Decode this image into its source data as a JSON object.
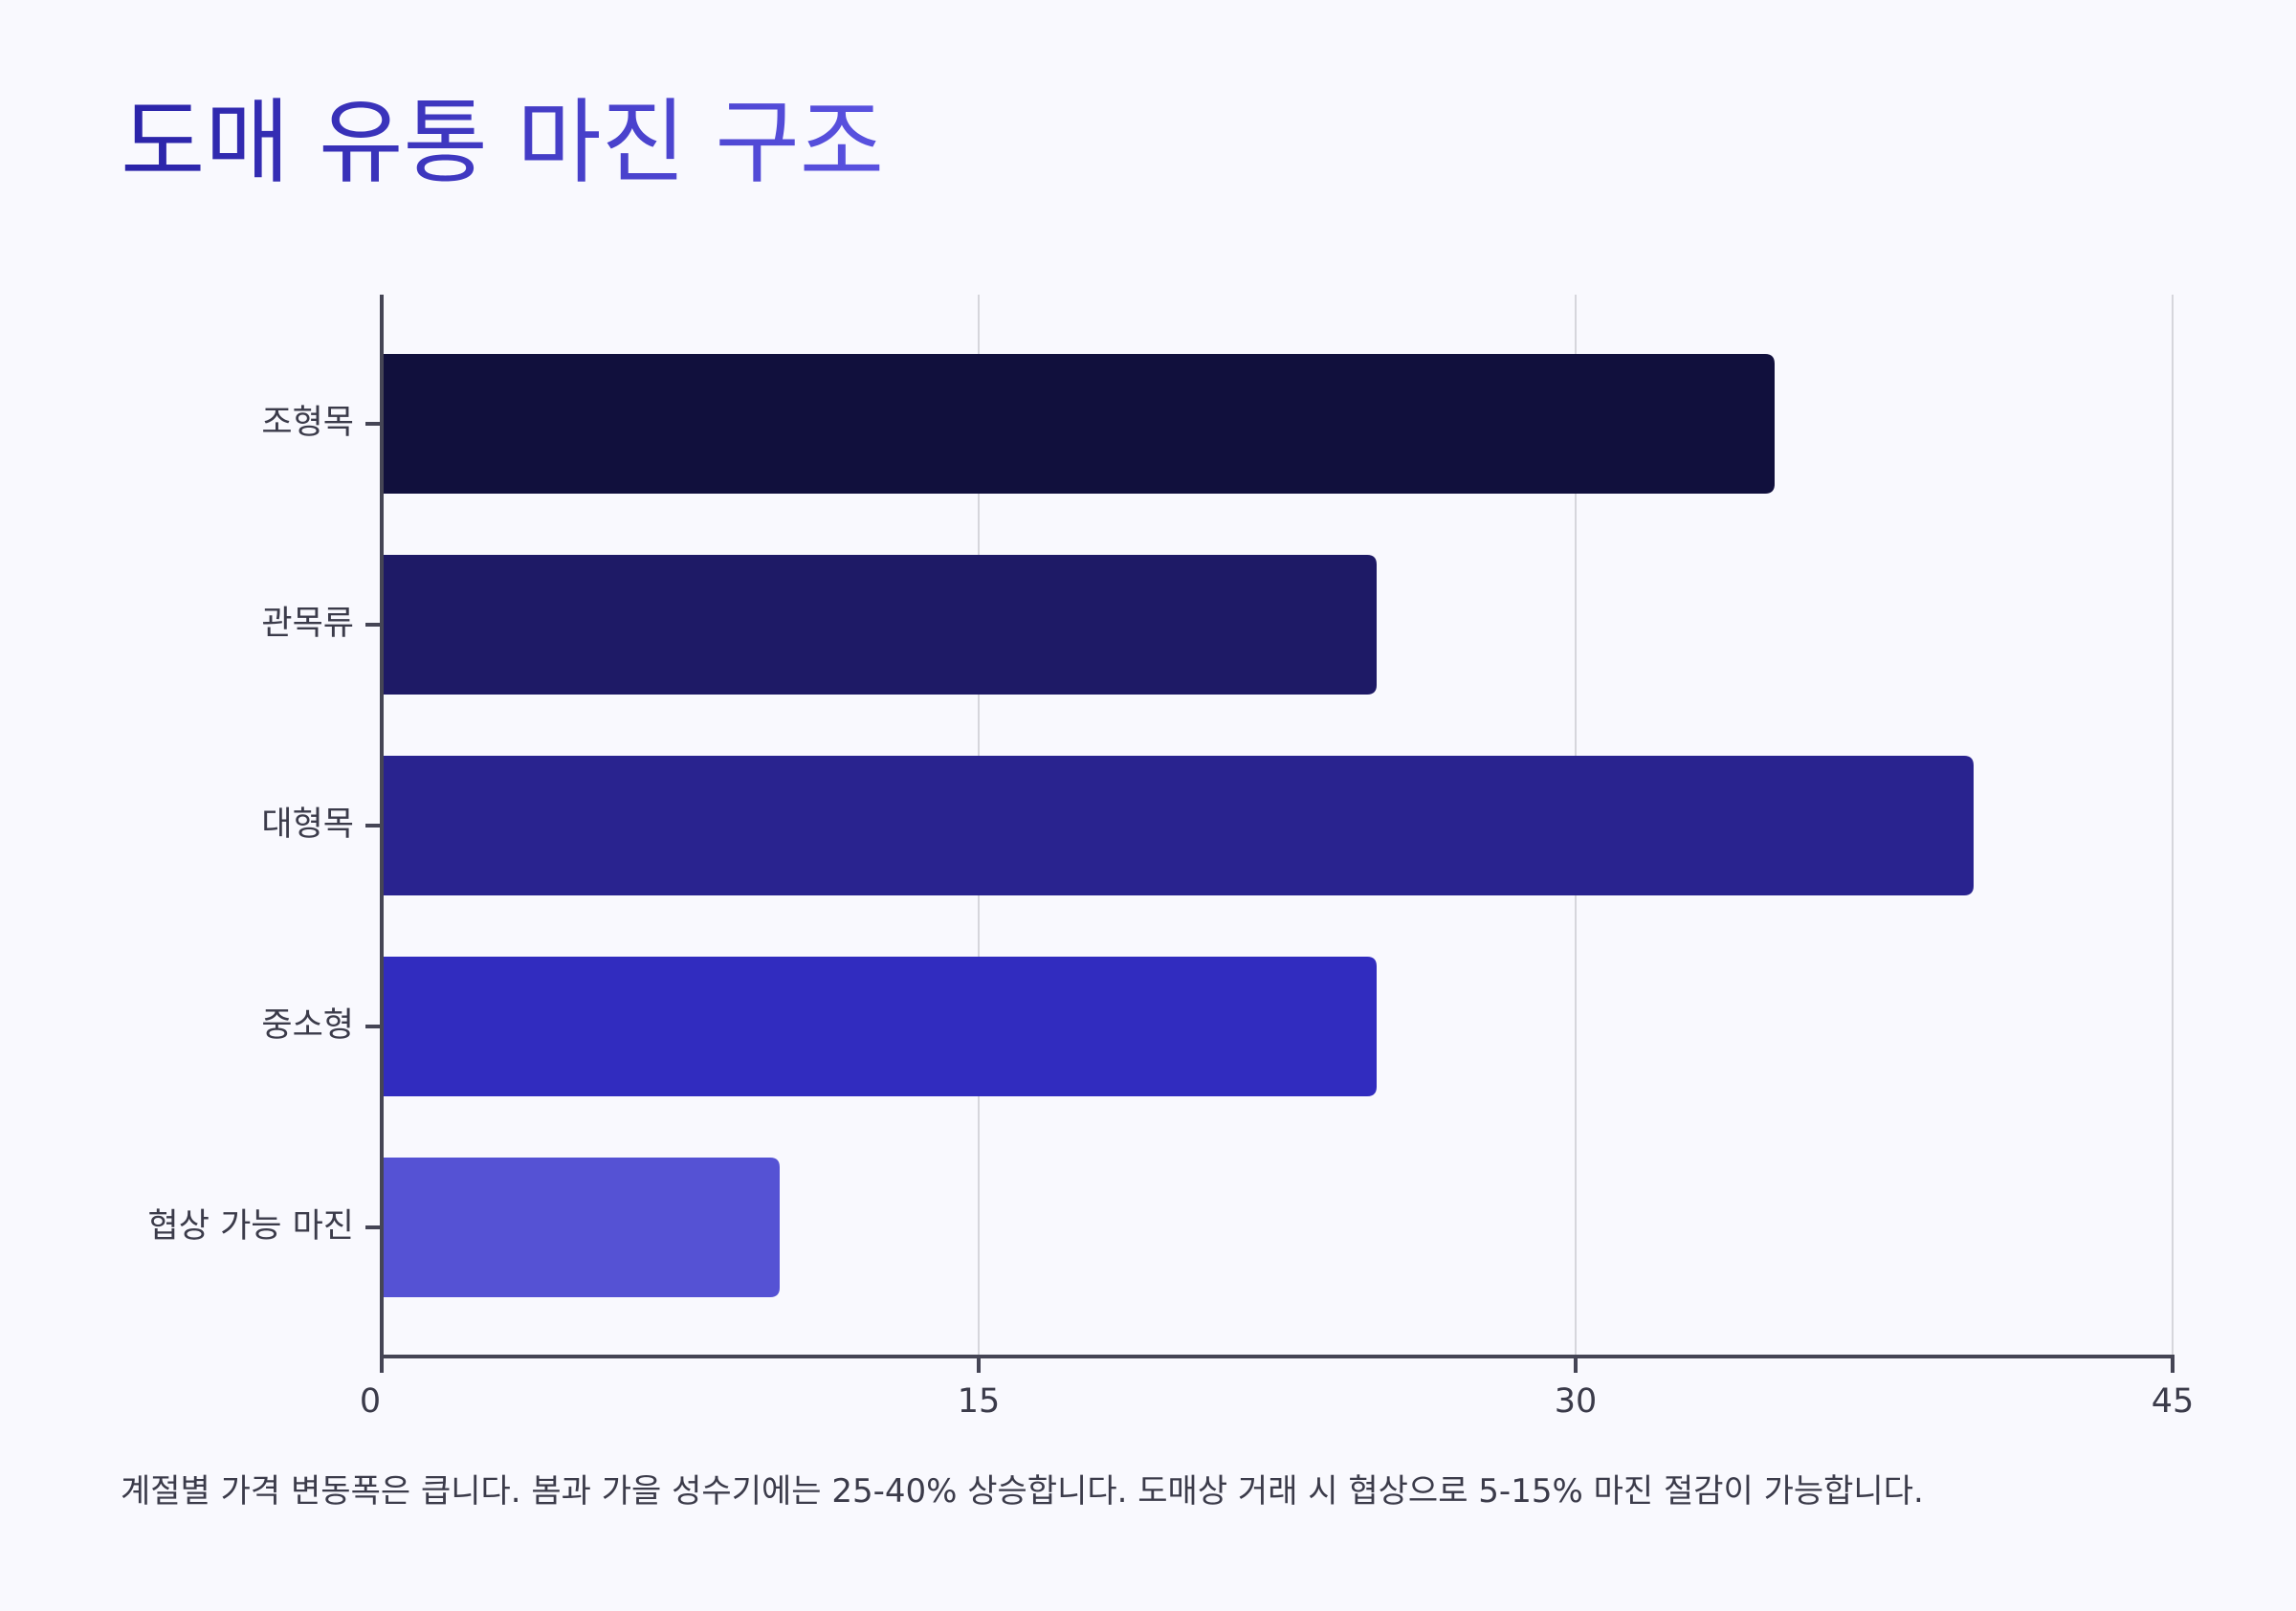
{
  "title": "도매 유통 마진 구조",
  "footnote": "계절별 가격 변동폭은 큽니다. 봄과 가을 성수기에는 25-40% 상승합니다. 도매상 거래 시 협상으로 5-15% 마진 절감이 가능합니다.",
  "chart_data": {
    "type": "bar",
    "orientation": "horizontal",
    "title": "도매 유통 마진 구조",
    "xlabel": "",
    "ylabel": "",
    "categories": [
      "조형목",
      "관목류",
      "대형목",
      "중소형",
      "협상 가능 마진"
    ],
    "values": [
      35,
      25,
      40,
      25,
      10
    ],
    "xlim": [
      0,
      45
    ],
    "xticks": [
      "0",
      "15",
      "30",
      "45"
    ],
    "grid": true,
    "legend": "none",
    "colors": [
      "#11103d",
      "#1e1a66",
      "#29238f",
      "#312cbf",
      "#5552d4"
    ],
    "axis_color": "#454555",
    "grid_color": "#d6d6dc",
    "label_color": "#3b3b4a"
  }
}
